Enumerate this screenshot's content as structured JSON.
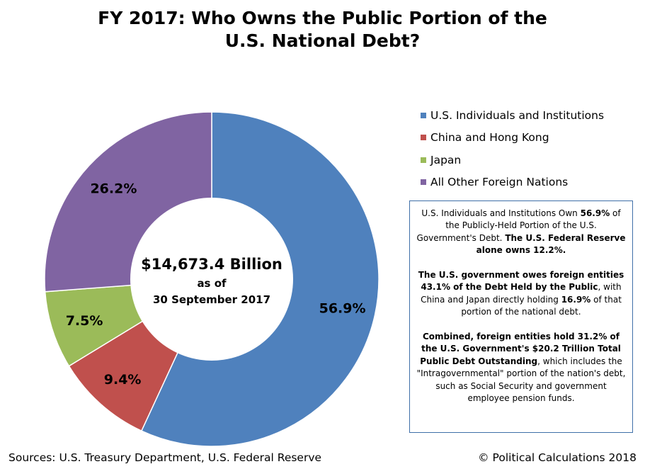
{
  "title": {
    "line1": "FY 2017: Who Owns the Public Portion of the",
    "line2": "U.S. National Debt?"
  },
  "chart_data": {
    "type": "pie",
    "style": "donut",
    "categories": [
      "U.S. Individuals and Institutions",
      "China and Hong Kong",
      "Japan",
      "All Other Foreign Nations"
    ],
    "values": [
      56.9,
      9.4,
      7.5,
      26.2
    ],
    "value_labels": [
      "56.9%",
      "9.4%",
      "7.5%",
      "26.2%"
    ],
    "colors": [
      "#4f81bd",
      "#c0504d",
      "#9bbb59",
      "#8064a2"
    ],
    "legend_position": "right",
    "center_text": {
      "total": "$14,673.4 Billion",
      "line2": "as of",
      "line3": "30 September 2017"
    }
  },
  "note": {
    "p1": [
      {
        "text": "U.S. Individuals and Institutions Own ",
        "bold": false
      },
      {
        "text": "56.9%",
        "bold": true
      },
      {
        "text": " of the Publicly-Held Portion of the U.S. Government's Debt.  ",
        "bold": false
      },
      {
        "text": "The U.S. Federal Reserve alone owns 12.2%.",
        "bold": true
      }
    ],
    "p2": [
      {
        "text": "The U.S. government owes foreign entities 43.1% of the Debt Held by the Public",
        "bold": true
      },
      {
        "text": ", with China and Japan directly holding ",
        "bold": false
      },
      {
        "text": "16.9%",
        "bold": true
      },
      {
        "text": " of that portion of the national debt.",
        "bold": false
      }
    ],
    "p3": [
      {
        "text": "Combined, foreign entities hold 31.2% of the U.S. Government's $20.2 Trillion Total Public Debt Outstanding",
        "bold": true
      },
      {
        "text": ", which includes the \"Intragovernmental\"  portion of the nation's debt, such as Social Security and government employee pension funds.",
        "bold": false
      }
    ]
  },
  "footer": {
    "sources": "Sources:  U.S. Treasury Department, U.S. Federal Reserve",
    "copyright": "© Political Calculations 2018"
  }
}
